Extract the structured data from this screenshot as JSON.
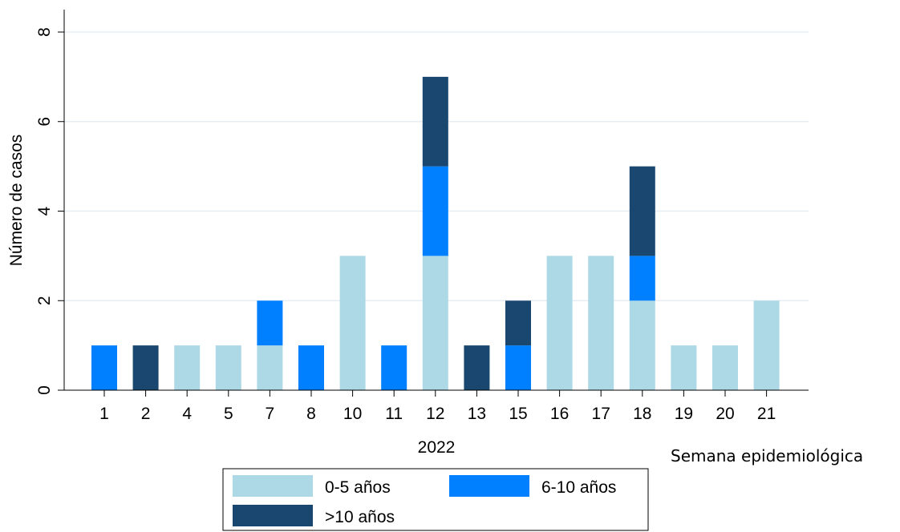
{
  "chart_data": {
    "type": "bar",
    "stacked": true,
    "categories": [
      "1",
      "2",
      "4",
      "5",
      "7",
      "8",
      "10",
      "11",
      "12",
      "13",
      "15",
      "16",
      "17",
      "18",
      "19",
      "20",
      "21"
    ],
    "series": [
      {
        "name": "0-5 años",
        "color": "#add8e6",
        "values": [
          0,
          0,
          1,
          1,
          1,
          0,
          3,
          0,
          3,
          0,
          0,
          3,
          3,
          2,
          1,
          1,
          2
        ]
      },
      {
        "name": "6-10 años",
        "color": "#0080ff",
        "values": [
          1,
          0,
          0,
          0,
          1,
          1,
          0,
          1,
          2,
          0,
          1,
          0,
          0,
          1,
          0,
          0,
          0
        ]
      },
      {
        "name": ">10 años",
        "color": "#1a476f",
        "values": [
          0,
          1,
          0,
          0,
          0,
          0,
          0,
          0,
          2,
          1,
          1,
          0,
          0,
          2,
          0,
          0,
          0
        ]
      }
    ],
    "ylabel": "Número de casos",
    "xlabel": "2022",
    "xlabel_note": "Semana epidemiológica",
    "ylim": [
      0,
      8
    ],
    "yticks": [
      0,
      2,
      4,
      6,
      8
    ],
    "grid": true,
    "legend_position": "bottom"
  }
}
